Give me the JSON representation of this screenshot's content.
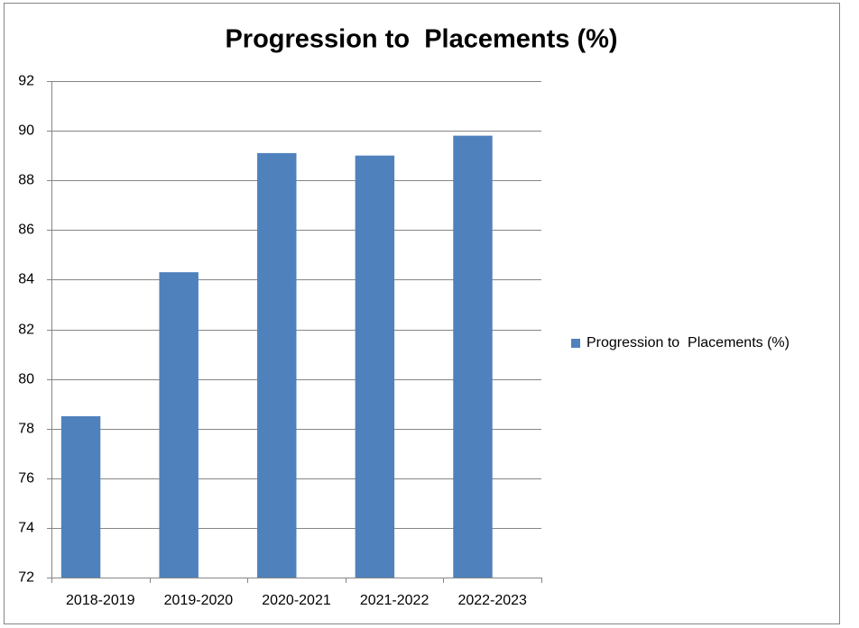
{
  "chart_data": {
    "type": "bar",
    "title": "Progression to  Placements (%)",
    "categories": [
      "2018-2019",
      "2019-2020",
      "2020-2021",
      "2021-2022",
      "2022-2023"
    ],
    "series": [
      {
        "name": "Progression to  Placements (%)",
        "color": "#4f81bd",
        "values": [
          78.5,
          84.3,
          89.1,
          89.0,
          89.8
        ]
      }
    ],
    "ylim": [
      72,
      92
    ],
    "yticks": [
      72,
      74,
      76,
      78,
      80,
      82,
      84,
      86,
      88,
      90,
      92
    ],
    "grid": true,
    "legend": "right"
  }
}
